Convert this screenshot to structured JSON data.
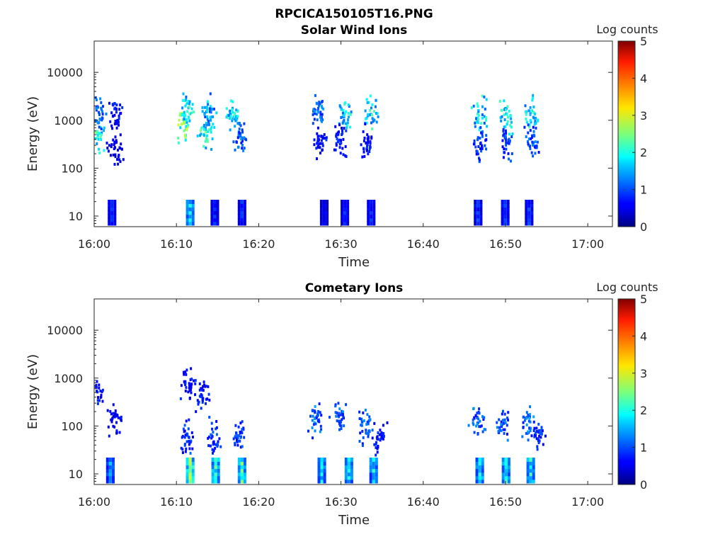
{
  "figure_title": "RPCICA150105T16.PNG",
  "chart_data": [
    {
      "type": "heatmap",
      "title": "Solar Wind Ions",
      "xlabel": "Time",
      "ylabel": "Energy (eV)",
      "x_ticks": [
        "16:00",
        "16:10",
        "16:20",
        "16:30",
        "16:40",
        "16:50",
        "17:00"
      ],
      "y_ticks": [
        "10",
        "100",
        "1000",
        "10000"
      ],
      "y_scale": "log",
      "ylim": [
        6,
        45000
      ],
      "xlim_min": [
        0,
        63
      ],
      "colorbar": {
        "label": "Log counts",
        "ticks": [
          "0",
          "1",
          "2",
          "3",
          "4",
          "5"
        ],
        "range": [
          0,
          5
        ],
        "colormap": "jet"
      },
      "clusters": [
        {
          "t": 0.3,
          "e": 500,
          "v": 2.2
        },
        {
          "t": 0.5,
          "e": 1500,
          "v": 1.2
        },
        {
          "t": 2.5,
          "e": 1200,
          "v": 0.8
        },
        {
          "t": 2.5,
          "e": 300,
          "v": 0.6
        },
        {
          "t": 10.8,
          "e": 900,
          "v": 2.6
        },
        {
          "t": 11.2,
          "e": 1800,
          "v": 2.0
        },
        {
          "t": 13.5,
          "e": 600,
          "v": 2.2
        },
        {
          "t": 13.8,
          "e": 1500,
          "v": 1.6
        },
        {
          "t": 16.6,
          "e": 1500,
          "v": 2.0
        },
        {
          "t": 17.5,
          "e": 500,
          "v": 1.2
        },
        {
          "t": 27.0,
          "e": 1500,
          "v": 1.3
        },
        {
          "t": 27.2,
          "e": 350,
          "v": 0.8
        },
        {
          "t": 30.3,
          "e": 1400,
          "v": 2.0
        },
        {
          "t": 29.8,
          "e": 400,
          "v": 0.8
        },
        {
          "t": 33.5,
          "e": 1400,
          "v": 2.0
        },
        {
          "t": 33.0,
          "e": 350,
          "v": 0.8
        },
        {
          "t": 46.8,
          "e": 1400,
          "v": 2.0
        },
        {
          "t": 46.8,
          "e": 350,
          "v": 1.0
        },
        {
          "t": 50.0,
          "e": 1400,
          "v": 2.0
        },
        {
          "t": 50.0,
          "e": 350,
          "v": 1.0
        },
        {
          "t": 53.0,
          "e": 1400,
          "v": 2.0
        },
        {
          "t": 53.2,
          "e": 380,
          "v": 1.2
        }
      ],
      "low_energy_columns": [
        {
          "t": 2.0,
          "v": 0.8
        },
        {
          "t": 11.5,
          "v": 1.8
        },
        {
          "t": 14.5,
          "v": 0.8
        },
        {
          "t": 17.8,
          "v": 0.8
        },
        {
          "t": 27.8,
          "v": 0.6
        },
        {
          "t": 30.3,
          "v": 0.8
        },
        {
          "t": 33.5,
          "v": 0.8
        },
        {
          "t": 46.5,
          "v": 0.9
        },
        {
          "t": 49.8,
          "v": 0.9
        },
        {
          "t": 52.7,
          "v": 0.9
        }
      ]
    },
    {
      "type": "heatmap",
      "title": "Cometary Ions",
      "xlabel": "Time",
      "ylabel": "Energy (eV)",
      "x_ticks": [
        "16:00",
        "16:10",
        "16:20",
        "16:30",
        "16:40",
        "16:50",
        "17:00"
      ],
      "y_ticks": [
        "10",
        "100",
        "1000",
        "10000"
      ],
      "y_scale": "log",
      "ylim": [
        6,
        45000
      ],
      "xlim_min": [
        0,
        63
      ],
      "colorbar": {
        "label": "Log counts",
        "ticks": [
          "0",
          "1",
          "2",
          "3",
          "4",
          "5"
        ],
        "range": [
          0,
          5
        ],
        "colormap": "jet"
      },
      "clusters": [
        {
          "t": 0.2,
          "e": 600,
          "v": 0.8
        },
        {
          "t": 2.2,
          "e": 150,
          "v": 0.7
        },
        {
          "t": 11.3,
          "e": 800,
          "v": 0.8
        },
        {
          "t": 13.0,
          "e": 500,
          "v": 0.8
        },
        {
          "t": 11.3,
          "e": 60,
          "v": 1.0
        },
        {
          "t": 14.5,
          "e": 60,
          "v": 1.0
        },
        {
          "t": 17.5,
          "e": 70,
          "v": 1.0
        },
        {
          "t": 26.8,
          "e": 150,
          "v": 1.3
        },
        {
          "t": 29.6,
          "e": 150,
          "v": 1.2
        },
        {
          "t": 32.8,
          "e": 100,
          "v": 1.2
        },
        {
          "t": 34.5,
          "e": 60,
          "v": 0.8
        },
        {
          "t": 46.5,
          "e": 130,
          "v": 1.2
        },
        {
          "t": 49.6,
          "e": 120,
          "v": 1.2
        },
        {
          "t": 52.6,
          "e": 120,
          "v": 1.3
        },
        {
          "t": 53.8,
          "e": 70,
          "v": 1.0
        }
      ],
      "low_energy_columns": [
        {
          "t": 1.8,
          "v": 1.4
        },
        {
          "t": 11.5,
          "v": 2.6
        },
        {
          "t": 14.6,
          "v": 2.2
        },
        {
          "t": 17.8,
          "v": 2.2
        },
        {
          "t": 27.5,
          "v": 1.8
        },
        {
          "t": 30.8,
          "v": 1.9
        },
        {
          "t": 33.8,
          "v": 1.8
        },
        {
          "t": 46.7,
          "v": 2.0
        },
        {
          "t": 49.9,
          "v": 2.0
        },
        {
          "t": 52.9,
          "v": 2.0
        }
      ]
    }
  ]
}
